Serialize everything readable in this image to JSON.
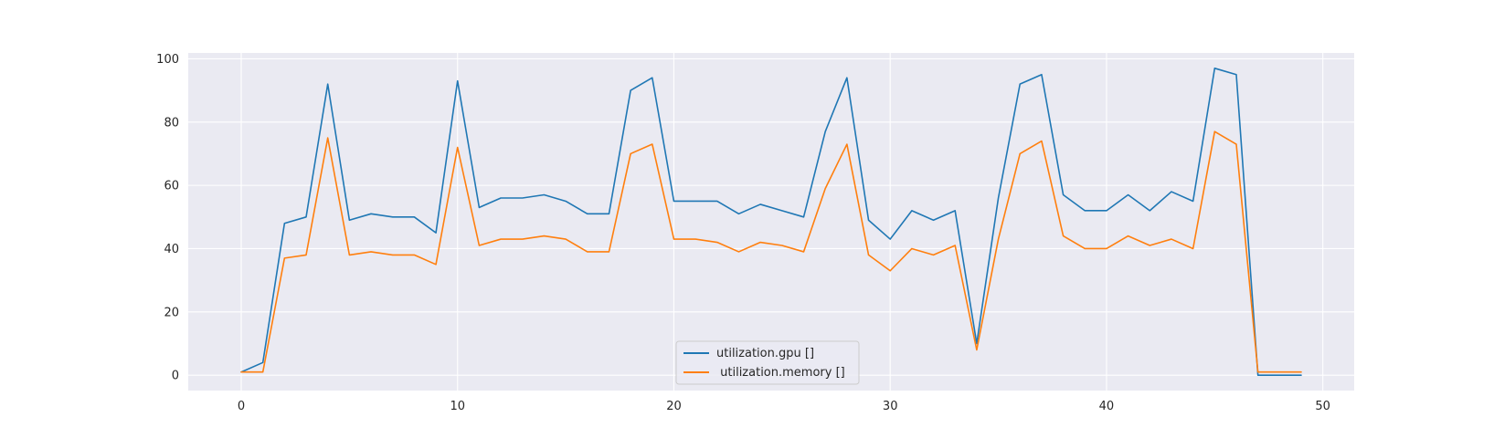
{
  "chart_data": {
    "type": "line",
    "title": "",
    "xlabel": "",
    "ylabel": "",
    "xlim": [
      -2.45,
      51.45
    ],
    "ylim": [
      -4.85,
      101.85
    ],
    "xticks": [
      0,
      10,
      20,
      30,
      40,
      50
    ],
    "yticks": [
      0,
      20,
      40,
      60,
      80,
      100
    ],
    "grid": true,
    "legend_position": "bottom-center",
    "background": "#eaeaf2",
    "x": [
      0,
      1,
      2,
      3,
      4,
      5,
      6,
      7,
      8,
      9,
      10,
      11,
      12,
      13,
      14,
      15,
      16,
      17,
      18,
      19,
      20,
      21,
      22,
      23,
      24,
      25,
      26,
      27,
      28,
      29,
      30,
      31,
      32,
      33,
      34,
      35,
      36,
      37,
      38,
      39,
      40,
      41,
      42,
      43,
      44,
      45,
      46,
      47,
      48,
      49
    ],
    "series": [
      {
        "name": "utilization.gpu []",
        "color": "#1f77b4",
        "values": [
          1,
          4,
          48,
          50,
          92,
          49,
          51,
          50,
          50,
          45,
          93,
          53,
          56,
          56,
          57,
          55,
          51,
          51,
          90,
          94,
          55,
          55,
          55,
          51,
          54,
          52,
          50,
          77,
          94,
          49,
          43,
          52,
          49,
          52,
          10,
          56,
          92,
          95,
          57,
          52,
          52,
          57,
          52,
          58,
          55,
          97,
          95,
          0,
          0,
          0
        ]
      },
      {
        "name": " utilization.memory []",
        "color": "#ff7f0e",
        "values": [
          1,
          1,
          37,
          38,
          75,
          38,
          39,
          38,
          38,
          35,
          72,
          41,
          43,
          43,
          44,
          43,
          39,
          39,
          70,
          73,
          43,
          43,
          42,
          39,
          42,
          41,
          39,
          59,
          73,
          38,
          33,
          40,
          38,
          41,
          8,
          43,
          70,
          74,
          44,
          40,
          40,
          44,
          41,
          43,
          40,
          77,
          73,
          1,
          1,
          1
        ]
      }
    ]
  }
}
